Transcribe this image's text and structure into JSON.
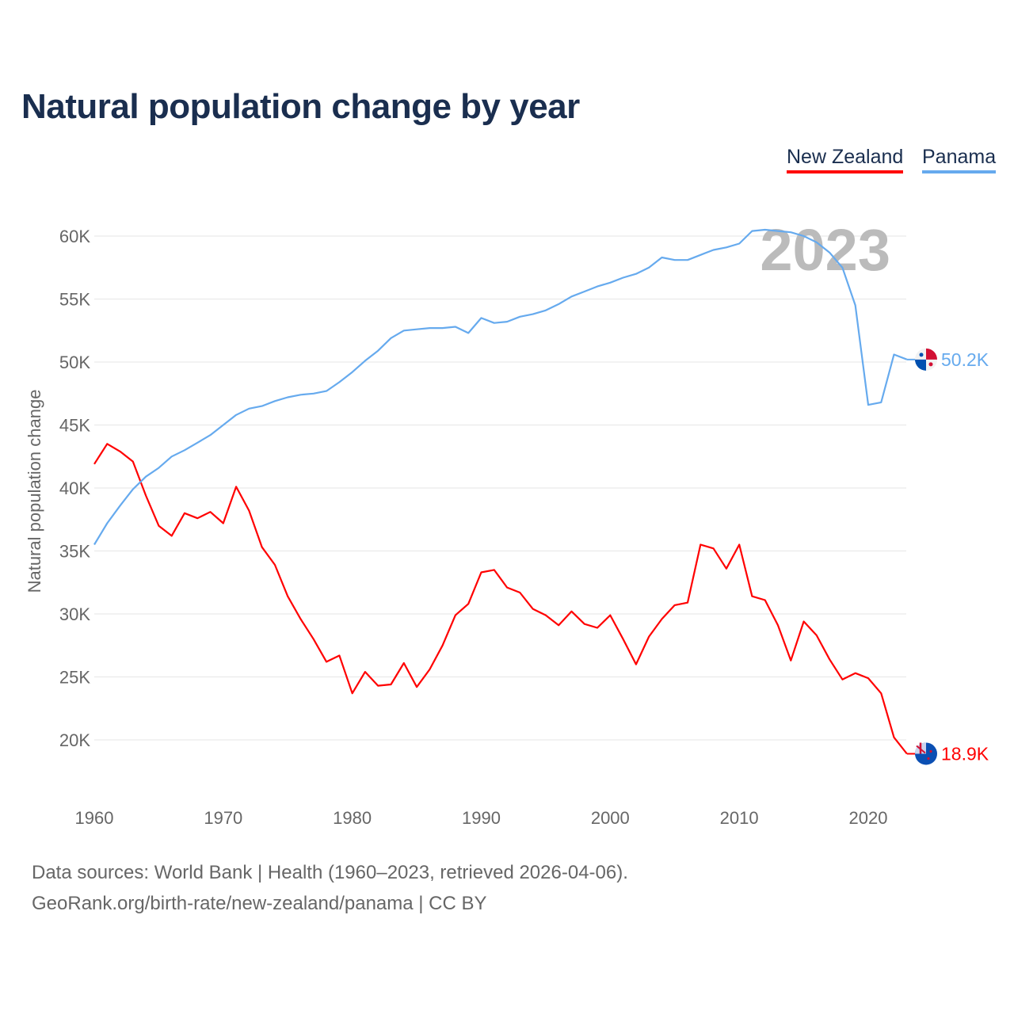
{
  "title": "Natural population change by year",
  "footer": {
    "line1": "Data sources: World Bank | Health (1960–2023, retrieved 2026-04-06).",
    "line2": "GeoRank.org/birth-rate/new-zealand/panama | CC BY"
  },
  "chart_data": {
    "type": "line",
    "title": "Natural population change by year",
    "xlabel": "",
    "ylabel": "Natural population change",
    "year_watermark": "2023",
    "xlim": [
      1960,
      2023
    ],
    "ylim": [
      16000,
      62000
    ],
    "x_ticks": [
      "1960",
      "1970",
      "1980",
      "1990",
      "2000",
      "2010",
      "2020"
    ],
    "y_ticks": [
      {
        "v": 20000,
        "label": "20K"
      },
      {
        "v": 25000,
        "label": "25K"
      },
      {
        "v": 30000,
        "label": "30K"
      },
      {
        "v": 35000,
        "label": "35K"
      },
      {
        "v": 40000,
        "label": "40K"
      },
      {
        "v": 45000,
        "label": "45K"
      },
      {
        "v": 50000,
        "label": "50K"
      },
      {
        "v": 55000,
        "label": "55K"
      },
      {
        "v": 60000,
        "label": "60K"
      }
    ],
    "grid": true,
    "legend_position": "top-right",
    "x_start": 1960,
    "series": [
      {
        "name": "New Zealand",
        "color": "#ff0000",
        "end_label": "18.9K",
        "flag": "new-zealand-flag-icon",
        "values": [
          41.9,
          43.5,
          42.9,
          42.1,
          39.4,
          37.0,
          36.2,
          38.0,
          37.6,
          38.1,
          37.2,
          40.1,
          38.2,
          35.3,
          33.9,
          31.4,
          29.6,
          28.0,
          26.2,
          26.7,
          23.7,
          25.4,
          24.3,
          24.4,
          26.1,
          24.2,
          25.6,
          27.5,
          29.9,
          30.8,
          33.3,
          33.5,
          32.1,
          31.7,
          30.4,
          29.9,
          29.1,
          30.2,
          29.2,
          28.9,
          29.9,
          28.0,
          26.0,
          28.2,
          29.6,
          30.7,
          30.9,
          35.5,
          35.2,
          33.6,
          35.5,
          31.4,
          31.1,
          29.1,
          26.3,
          29.4,
          28.3,
          26.4,
          24.8,
          25.3,
          24.9,
          23.7,
          20.2,
          18.9
        ]
      },
      {
        "name": "Panama",
        "color": "#66aaee",
        "end_label": "50.2K",
        "flag": "panama-flag-icon",
        "values": [
          35.5,
          37.2,
          38.6,
          39.9,
          40.9,
          41.6,
          42.5,
          43.0,
          43.6,
          44.2,
          45.0,
          45.8,
          46.3,
          46.5,
          46.9,
          47.2,
          47.4,
          47.5,
          47.7,
          48.4,
          49.2,
          50.1,
          50.9,
          51.9,
          52.5,
          52.6,
          52.7,
          52.7,
          52.8,
          52.3,
          53.5,
          53.1,
          53.2,
          53.6,
          53.8,
          54.1,
          54.6,
          55.2,
          55.6,
          56.0,
          56.3,
          56.7,
          57.0,
          57.5,
          58.3,
          58.1,
          58.1,
          58.5,
          58.9,
          59.1,
          59.4,
          60.4,
          60.5,
          60.4,
          60.3,
          60.0,
          59.5,
          58.7,
          57.5,
          54.5,
          46.6,
          46.8,
          50.6,
          50.2
        ]
      }
    ],
    "value_unit": "thousands"
  }
}
